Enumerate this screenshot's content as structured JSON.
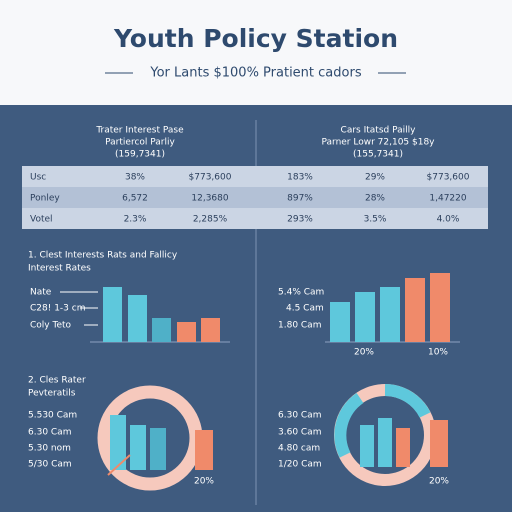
{
  "header": {
    "title": "Youth Policy Station",
    "subtitle": "Yor Lants $100% Pratient cadors"
  },
  "panels": [
    {
      "heading": [
        "Trater Interest Pase",
        "Partiercol Parliy",
        "(159,7341)"
      ]
    },
    {
      "heading": [
        "Cars Itatsd Pailly",
        "Parner Lowr 72,105 $18y",
        "(155,7341)"
      ]
    }
  ],
  "table": {
    "rows": [
      [
        "Usc",
        "38%",
        "$773,600",
        "183%",
        "29%",
        "$773,600"
      ],
      [
        "Ponley",
        "6,572",
        "12,3680",
        "897%",
        "28%",
        "1,47220"
      ],
      [
        "Votel",
        "2.3%",
        "2,285%",
        "293%",
        "3.5%",
        "4.0%"
      ]
    ]
  },
  "section1": {
    "title": [
      "1. Clest Interests Rats and Fallicy",
      "Interest Rates"
    ],
    "left_labels": [
      "Nate",
      "C28! 1-3 cm",
      "Coly Teto"
    ],
    "right_labels": [
      "5.4% Cam",
      "4.5 Cam",
      "1.80 Cam"
    ],
    "right_axis_labels": [
      "20%",
      "10%"
    ]
  },
  "section2": {
    "title": [
      "2. Cles Rater",
      "Pevteratils"
    ],
    "left_labels": [
      "5.530 Cam",
      "6.30 Cam",
      "5.30 nom",
      "5/30 Cam"
    ],
    "left_axis_label": "20%",
    "right_labels": [
      "6.30 Cam",
      "3.60 Cam",
      "4.80 cam",
      "1/20 Cam"
    ],
    "right_axis_label": "20%"
  }
}
